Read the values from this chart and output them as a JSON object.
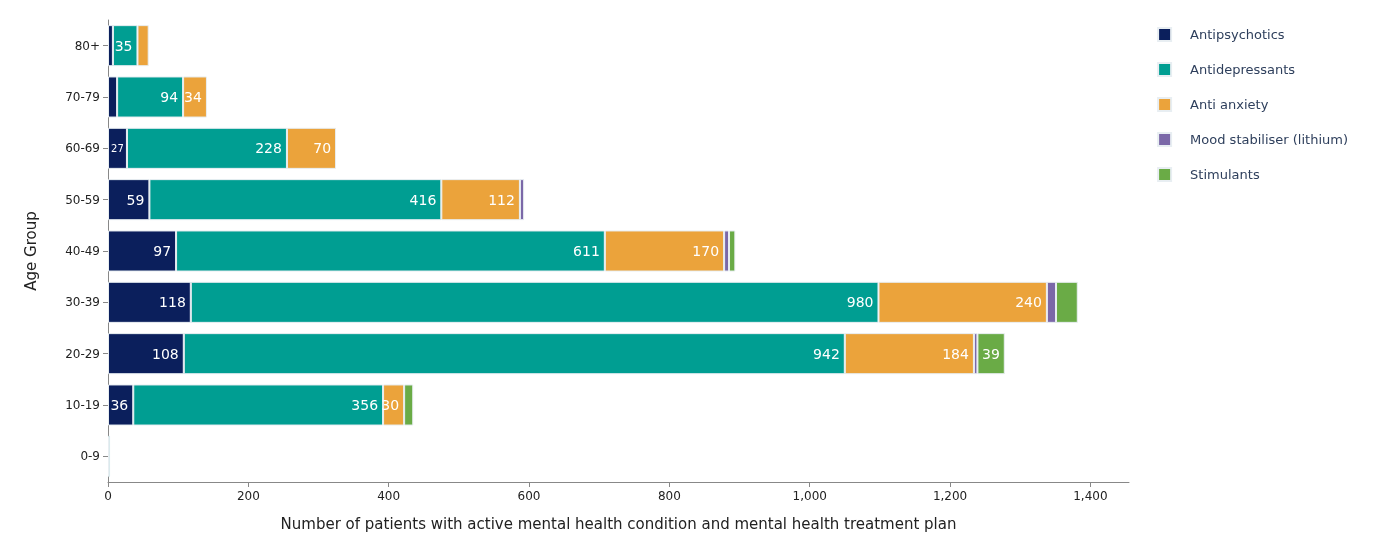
{
  "chart_data": {
    "type": "bar",
    "orientation": "horizontal",
    "stacked": true,
    "xlabel": "Number of patients with active mental health condition and mental health treatment plan",
    "ylabel": "Age Group",
    "categories": [
      "80+",
      "70-79",
      "60-69",
      "50-59",
      "40-49",
      "30-39",
      "20-29",
      "10-19",
      "0-9"
    ],
    "series": [
      {
        "name": "Antipsychotics",
        "color": "#0b1f5c",
        "values": [
          7,
          13,
          27,
          59,
          97,
          118,
          108,
          36,
          null
        ],
        "value_labels": [
          null,
          null,
          "27",
          "59",
          "97",
          "118",
          "108",
          "36",
          null
        ]
      },
      {
        "name": "Antidepressants",
        "color": "#009e92",
        "values": [
          35,
          94,
          228,
          416,
          611,
          980,
          942,
          356,
          3
        ],
        "value_labels": [
          "35",
          "94",
          "228",
          "416",
          "611",
          "980",
          "942",
          "356",
          null
        ]
      },
      {
        "name": "Anti anxiety",
        "color": "#eba33b",
        "values": [
          16,
          34,
          70,
          112,
          170,
          240,
          184,
          30,
          null
        ],
        "value_labels": [
          null,
          "34",
          "70",
          "112",
          "170",
          "240",
          "184",
          "30",
          null
        ]
      },
      {
        "name": "Mood stabiliser (lithium)",
        "color": "#7b68a8",
        "values": [
          null,
          null,
          null,
          6,
          7,
          13,
          5,
          null,
          null
        ],
        "value_labels": [
          null,
          null,
          null,
          null,
          null,
          null,
          null,
          null,
          null
        ]
      },
      {
        "name": "Stimulants",
        "color": "#6aab46",
        "values": [
          null,
          null,
          null,
          null,
          9,
          31,
          39,
          13,
          null
        ],
        "value_labels": [
          null,
          null,
          null,
          null,
          null,
          null,
          "39",
          null,
          null
        ]
      }
    ],
    "xlim": [
      0,
      1455
    ],
    "xticks": [
      0,
      200,
      400,
      600,
      800,
      {
        "value": 1000,
        "label": "1,000"
      },
      {
        "value": 1200,
        "label": "1,200"
      },
      {
        "value": 1400,
        "label": "1,400"
      }
    ],
    "grid": false,
    "legend": "top right"
  }
}
